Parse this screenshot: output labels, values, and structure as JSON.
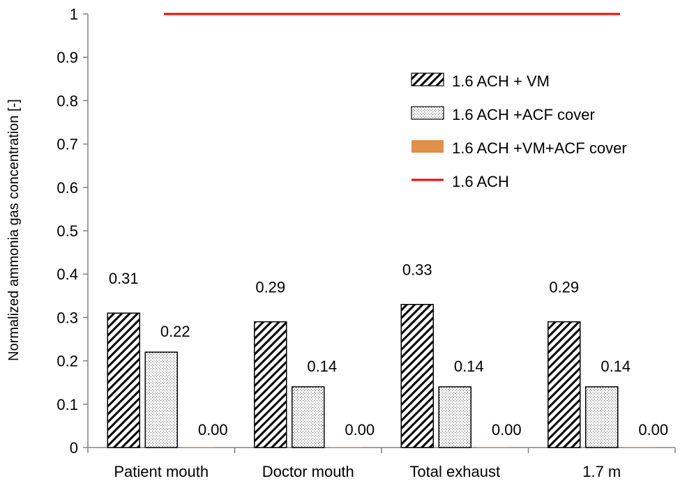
{
  "chart_data": {
    "type": "bar",
    "categories": [
      "Patient mouth",
      "Doctor mouth",
      "Total exhaust",
      "1.7 m"
    ],
    "series": [
      {
        "name": "1.6 ACH + VM",
        "pattern": "diagonal-hatch",
        "values": [
          0.31,
          0.29,
          0.33,
          0.29
        ],
        "labels": [
          "0.31",
          "0.29",
          "0.33",
          "0.29"
        ]
      },
      {
        "name": "1.6 ACH +ACF cover",
        "pattern": "dotted",
        "values": [
          0.22,
          0.14,
          0.14,
          0.14
        ],
        "labels": [
          "0.22",
          "0.14",
          "0.14",
          "0.14"
        ]
      },
      {
        "name": "1.6 ACH +VM+ACF cover",
        "color": "#E0914A",
        "values": [
          0.0,
          0.0,
          0.0,
          0.0
        ],
        "labels": [
          "0.00",
          "0.00",
          "0.00",
          "0.00"
        ]
      }
    ],
    "reference_line": {
      "name": "1.6 ACH",
      "type": "line",
      "value": 1.0,
      "color": "#FF0000"
    },
    "title": "",
    "xlabel": "",
    "ylabel": "Normalized ammonia gas concentration [-]",
    "ylim": [
      0,
      1
    ],
    "yticks": [
      "0",
      "0.1",
      "0.2",
      "0.3",
      "0.4",
      "0.5",
      "0.6",
      "0.7",
      "0.8",
      "0.9",
      "1"
    ],
    "grid": false,
    "legend_position": "top-right"
  }
}
